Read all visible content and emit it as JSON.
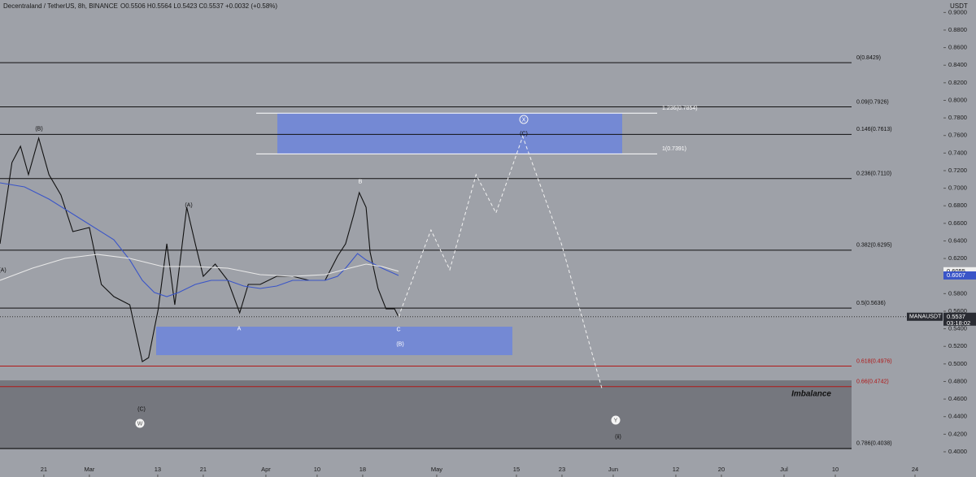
{
  "chart_data": {
    "type": "line",
    "title": "Decentraland / TetherUS, 8h, BINANCE",
    "ohlc": "O0.5506 H0.5564 L0.5423 C0.5537 +0.0032 (+0.58%)",
    "y_unit": "USDT",
    "xlim": [
      44.3,
      210
    ],
    "ylim": [
      0.3713,
      0.9142
    ],
    "xticks": [
      {
        "value": 52,
        "label": "21"
      },
      {
        "value": 60,
        "label": "Mar"
      },
      {
        "value": 72,
        "label": "13"
      },
      {
        "value": 80,
        "label": "21"
      },
      {
        "value": 91,
        "label": "Apr"
      },
      {
        "value": 100,
        "label": "10"
      },
      {
        "value": 108,
        "label": "18"
      },
      {
        "value": 121,
        "label": "May"
      },
      {
        "value": 135,
        "label": "15"
      },
      {
        "value": 143,
        "label": "23"
      },
      {
        "value": 152,
        "label": "Jun"
      },
      {
        "value": 163,
        "label": "12"
      },
      {
        "value": 171,
        "label": "20"
      },
      {
        "value": 182,
        "label": "Jul"
      },
      {
        "value": 191,
        "label": "10"
      },
      {
        "value": 205,
        "label": "24"
      }
    ],
    "yticks": [
      {
        "value": 0.4,
        "label": "0.4000"
      },
      {
        "value": 0.42,
        "label": "0.4200"
      },
      {
        "value": 0.44,
        "label": "0.4400"
      },
      {
        "value": 0.46,
        "label": "0.4600"
      },
      {
        "value": 0.48,
        "label": "0.4800"
      },
      {
        "value": 0.5,
        "label": "0.5000"
      },
      {
        "value": 0.52,
        "label": "0.5200"
      },
      {
        "value": 0.54,
        "label": "0.5400"
      },
      {
        "value": 0.56,
        "label": "0.5600"
      },
      {
        "value": 0.58,
        "label": "0.5800"
      },
      {
        "value": 0.6,
        "label": "0.6000"
      },
      {
        "value": 0.62,
        "label": "0.6200"
      },
      {
        "value": 0.64,
        "label": "0.6400"
      },
      {
        "value": 0.66,
        "label": "0.6600"
      },
      {
        "value": 0.68,
        "label": "0.6800"
      },
      {
        "value": 0.7,
        "label": "0.7000"
      },
      {
        "value": 0.72,
        "label": "0.7200"
      },
      {
        "value": 0.74,
        "label": "0.7400"
      },
      {
        "value": 0.76,
        "label": "0.7600"
      },
      {
        "value": 0.78,
        "label": "0.7800"
      },
      {
        "value": 0.8,
        "label": "0.8000"
      },
      {
        "value": 0.82,
        "label": "0.8200"
      },
      {
        "value": 0.84,
        "label": "0.8400"
      },
      {
        "value": 0.86,
        "label": "0.8600"
      },
      {
        "value": 0.88,
        "label": "0.8800"
      },
      {
        "value": 0.9,
        "label": "0.9000"
      }
    ],
    "zones": [
      {
        "from": 0.7391,
        "to": 0.7854,
        "color": "#6f86d8"
      },
      {
        "from": 0.51,
        "to": 0.5424,
        "color": "#6f86d8"
      },
      {
        "from": 0.4027,
        "to": 0.4813,
        "color": "#707279",
        "label": "Imbalance"
      }
    ],
    "levels": [
      {
        "value": 0.8429,
        "label": "0(0.8429)",
        "color": "#111111"
      },
      {
        "value": 0.7926,
        "label": "0.09(0.7926)",
        "color": "#111111"
      },
      {
        "value": 0.7613,
        "label": "0.146(0.7613)",
        "color": "#111111"
      },
      {
        "value": 0.711,
        "label": "0.236(0.7110)",
        "color": "#111111"
      },
      {
        "value": 0.6295,
        "label": "0.382(0.6295)",
        "color": "#111111"
      },
      {
        "value": 0.5636,
        "label": "0.5(0.5636)",
        "color": "#111111"
      },
      {
        "value": 0.4976,
        "label": "0.618(0.4976)",
        "color": "#b01818"
      },
      {
        "value": 0.4742,
        "label": "0.66(0.4742)",
        "color": "#b01818"
      },
      {
        "value": 0.4038,
        "label": "0.786(0.4038)",
        "color": "#111111"
      },
      {
        "value": 0.7854,
        "label": "1.236(0.7854)",
        "color": "#ffffff"
      },
      {
        "value": 0.7391,
        "label": "1(0.7391)",
        "color": "#ffffff"
      }
    ],
    "series": [
      {
        "color": "#111111",
        "style": "solid",
        "x": [
          44.3,
          46.4,
          47.9,
          49.3,
          51.1,
          52.9,
          55,
          57.1,
          60,
          62.1,
          64.3,
          67.1,
          69.3,
          70.4,
          72.1,
          73.6,
          75,
          77.1,
          78.6,
          80,
          82.1,
          84.3,
          86.4,
          87.9,
          90,
          92.9,
          95.7,
          98.6,
          101.4,
          103.6,
          105,
          106.4,
          107.4,
          108.6,
          109.3,
          110.7,
          112.1,
          113.6,
          114.3
        ],
        "values": [
          0.6367,
          0.7292,
          0.7477,
          0.7154,
          0.757,
          0.7154,
          0.6922,
          0.6506,
          0.6552,
          0.5905,
          0.5766,
          0.5673,
          0.5026,
          0.5072,
          0.5627,
          0.6367,
          0.5673,
          0.6783,
          0.6367,
          0.5997,
          0.6136,
          0.5951,
          0.5581,
          0.5905,
          0.5905,
          0.5997,
          0.5997,
          0.5951,
          0.5951,
          0.6228,
          0.6367,
          0.6691,
          0.695,
          0.6783,
          0.6275,
          0.5858,
          0.5627,
          0.5627,
          0.5537
        ]
      },
      {
        "color": "#3a55c8",
        "style": "solid",
        "x": [
          44.3,
          48.6,
          52.9,
          58.6,
          64.3,
          67.1,
          69.3,
          71.4,
          73.6,
          75.7,
          78.6,
          81.4,
          84.3,
          87.1,
          90,
          92.9,
          95.7,
          98.6,
          101.4,
          103.6,
          105,
          107.1,
          108.6,
          111.4,
          114.3
        ],
        "values": [
          0.7061,
          0.7015,
          0.6876,
          0.6645,
          0.6414,
          0.6183,
          0.5951,
          0.5813,
          0.5766,
          0.5813,
          0.5905,
          0.5951,
          0.5951,
          0.5886,
          0.5859,
          0.5886,
          0.5951,
          0.5951,
          0.5951,
          0.5997,
          0.609,
          0.6256,
          0.6183,
          0.609,
          0.6007
        ]
      },
      {
        "color": "#e8e8e8",
        "style": "solid",
        "x": [
          44.3,
          50,
          55.7,
          61.4,
          67.1,
          72.9,
          78.6,
          84.3,
          90,
          95.7,
          101.4,
          105.7,
          108.6,
          111.4,
          114.3
        ],
        "values": [
          0.5951,
          0.609,
          0.6201,
          0.6247,
          0.6201,
          0.6108,
          0.6108,
          0.609,
          0.6016,
          0.5997,
          0.6016,
          0.609,
          0.6136,
          0.6108,
          0.6055
        ]
      },
      {
        "color": "#f2f2f2",
        "style": "dashed",
        "x": [
          114.3,
          120,
          123.3,
          127.9,
          131.4,
          136.1,
          142.9,
          150
        ],
        "values": [
          0.5537,
          0.6525,
          0.6071,
          0.7154,
          0.6719,
          0.7588,
          0.6367,
          0.4721
        ]
      }
    ],
    "price_tags": [
      {
        "value": 0.6055,
        "bg": "#f0f0f0",
        "fg": "#111111"
      },
      {
        "value": 0.6007,
        "bg": "#3a55c8",
        "fg": "#ffffff"
      },
      {
        "value": 0.5537,
        "bg": "#2a2c33",
        "fg": "#ffffff",
        "symbol": "MANAUSDT",
        "countdown": "03:18:02"
      }
    ],
    "annotations": [
      {
        "text": "(B)"
      },
      {
        "text": "(A)"
      },
      {
        "text": "(A)"
      },
      {
        "text": "(C)"
      },
      {
        "text": "W",
        "circled": true
      },
      {
        "text": "A"
      },
      {
        "text": "B"
      },
      {
        "text": "C"
      },
      {
        "text": "(B)"
      },
      {
        "text": "X",
        "circled": true
      },
      {
        "text": "(C)"
      },
      {
        "text": "Y",
        "circled": true
      },
      {
        "text": "(ii)"
      }
    ]
  }
}
